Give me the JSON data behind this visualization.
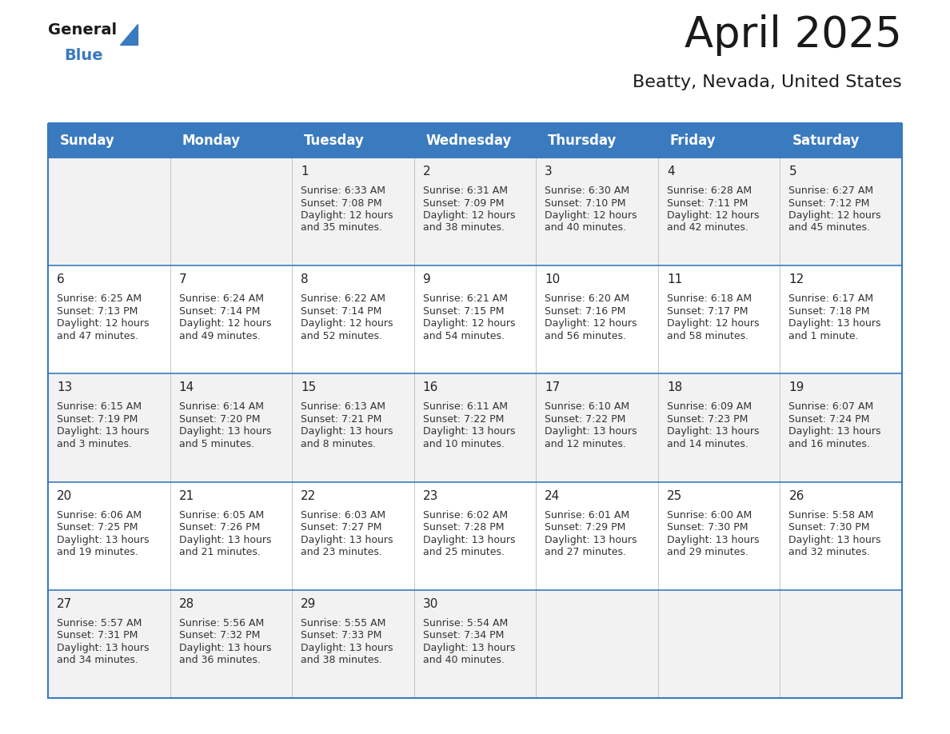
{
  "title": "April 2025",
  "subtitle": "Beatty, Nevada, United States",
  "header_bg": "#3A7ABF",
  "header_text_color": "#FFFFFF",
  "row_bg_even": "#F2F2F2",
  "row_bg_odd": "#FFFFFF",
  "day_names": [
    "Sunday",
    "Monday",
    "Tuesday",
    "Wednesday",
    "Thursday",
    "Friday",
    "Saturday"
  ],
  "days": [
    {
      "date": 1,
      "col": 2,
      "row": 0,
      "sunrise": "6:33 AM",
      "sunset": "7:08 PM",
      "daylight": "12 hours and 35 minutes."
    },
    {
      "date": 2,
      "col": 3,
      "row": 0,
      "sunrise": "6:31 AM",
      "sunset": "7:09 PM",
      "daylight": "12 hours and 38 minutes."
    },
    {
      "date": 3,
      "col": 4,
      "row": 0,
      "sunrise": "6:30 AM",
      "sunset": "7:10 PM",
      "daylight": "12 hours and 40 minutes."
    },
    {
      "date": 4,
      "col": 5,
      "row": 0,
      "sunrise": "6:28 AM",
      "sunset": "7:11 PM",
      "daylight": "12 hours and 42 minutes."
    },
    {
      "date": 5,
      "col": 6,
      "row": 0,
      "sunrise": "6:27 AM",
      "sunset": "7:12 PM",
      "daylight": "12 hours and 45 minutes."
    },
    {
      "date": 6,
      "col": 0,
      "row": 1,
      "sunrise": "6:25 AM",
      "sunset": "7:13 PM",
      "daylight": "12 hours and 47 minutes."
    },
    {
      "date": 7,
      "col": 1,
      "row": 1,
      "sunrise": "6:24 AM",
      "sunset": "7:14 PM",
      "daylight": "12 hours and 49 minutes."
    },
    {
      "date": 8,
      "col": 2,
      "row": 1,
      "sunrise": "6:22 AM",
      "sunset": "7:14 PM",
      "daylight": "12 hours and 52 minutes."
    },
    {
      "date": 9,
      "col": 3,
      "row": 1,
      "sunrise": "6:21 AM",
      "sunset": "7:15 PM",
      "daylight": "12 hours and 54 minutes."
    },
    {
      "date": 10,
      "col": 4,
      "row": 1,
      "sunrise": "6:20 AM",
      "sunset": "7:16 PM",
      "daylight": "12 hours and 56 minutes."
    },
    {
      "date": 11,
      "col": 5,
      "row": 1,
      "sunrise": "6:18 AM",
      "sunset": "7:17 PM",
      "daylight": "12 hours and 58 minutes."
    },
    {
      "date": 12,
      "col": 6,
      "row": 1,
      "sunrise": "6:17 AM",
      "sunset": "7:18 PM",
      "daylight": "13 hours and 1 minute."
    },
    {
      "date": 13,
      "col": 0,
      "row": 2,
      "sunrise": "6:15 AM",
      "sunset": "7:19 PM",
      "daylight": "13 hours and 3 minutes."
    },
    {
      "date": 14,
      "col": 1,
      "row": 2,
      "sunrise": "6:14 AM",
      "sunset": "7:20 PM",
      "daylight": "13 hours and 5 minutes."
    },
    {
      "date": 15,
      "col": 2,
      "row": 2,
      "sunrise": "6:13 AM",
      "sunset": "7:21 PM",
      "daylight": "13 hours and 8 minutes."
    },
    {
      "date": 16,
      "col": 3,
      "row": 2,
      "sunrise": "6:11 AM",
      "sunset": "7:22 PM",
      "daylight": "13 hours and 10 minutes."
    },
    {
      "date": 17,
      "col": 4,
      "row": 2,
      "sunrise": "6:10 AM",
      "sunset": "7:22 PM",
      "daylight": "13 hours and 12 minutes."
    },
    {
      "date": 18,
      "col": 5,
      "row": 2,
      "sunrise": "6:09 AM",
      "sunset": "7:23 PM",
      "daylight": "13 hours and 14 minutes."
    },
    {
      "date": 19,
      "col": 6,
      "row": 2,
      "sunrise": "6:07 AM",
      "sunset": "7:24 PM",
      "daylight": "13 hours and 16 minutes."
    },
    {
      "date": 20,
      "col": 0,
      "row": 3,
      "sunrise": "6:06 AM",
      "sunset": "7:25 PM",
      "daylight": "13 hours and 19 minutes."
    },
    {
      "date": 21,
      "col": 1,
      "row": 3,
      "sunrise": "6:05 AM",
      "sunset": "7:26 PM",
      "daylight": "13 hours and 21 minutes."
    },
    {
      "date": 22,
      "col": 2,
      "row": 3,
      "sunrise": "6:03 AM",
      "sunset": "7:27 PM",
      "daylight": "13 hours and 23 minutes."
    },
    {
      "date": 23,
      "col": 3,
      "row": 3,
      "sunrise": "6:02 AM",
      "sunset": "7:28 PM",
      "daylight": "13 hours and 25 minutes."
    },
    {
      "date": 24,
      "col": 4,
      "row": 3,
      "sunrise": "6:01 AM",
      "sunset": "7:29 PM",
      "daylight": "13 hours and 27 minutes."
    },
    {
      "date": 25,
      "col": 5,
      "row": 3,
      "sunrise": "6:00 AM",
      "sunset": "7:30 PM",
      "daylight": "13 hours and 29 minutes."
    },
    {
      "date": 26,
      "col": 6,
      "row": 3,
      "sunrise": "5:58 AM",
      "sunset": "7:30 PM",
      "daylight": "13 hours and 32 minutes."
    },
    {
      "date": 27,
      "col": 0,
      "row": 4,
      "sunrise": "5:57 AM",
      "sunset": "7:31 PM",
      "daylight": "13 hours and 34 minutes."
    },
    {
      "date": 28,
      "col": 1,
      "row": 4,
      "sunrise": "5:56 AM",
      "sunset": "7:32 PM",
      "daylight": "13 hours and 36 minutes."
    },
    {
      "date": 29,
      "col": 2,
      "row": 4,
      "sunrise": "5:55 AM",
      "sunset": "7:33 PM",
      "daylight": "13 hours and 38 minutes."
    },
    {
      "date": 30,
      "col": 3,
      "row": 4,
      "sunrise": "5:54 AM",
      "sunset": "7:34 PM",
      "daylight": "13 hours and 40 minutes."
    }
  ],
  "num_rows": 5,
  "num_cols": 7,
  "logo_color": "#3A7ABF",
  "divider_color": "#3A7ABF",
  "title_fontsize": 38,
  "subtitle_fontsize": 16,
  "header_fontsize": 12,
  "date_fontsize": 11,
  "cell_fontsize": 9
}
